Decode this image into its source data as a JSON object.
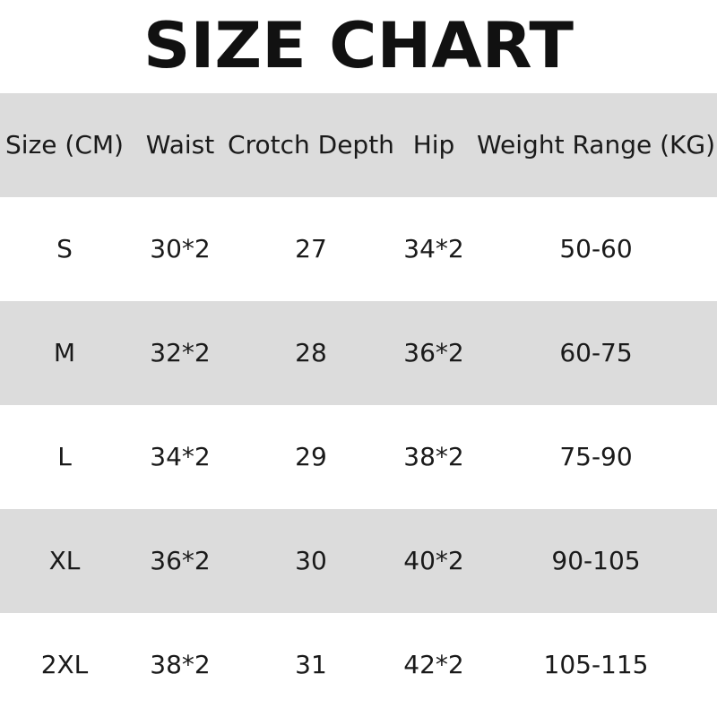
{
  "title": "SIZE CHART",
  "table": {
    "header": [
      "Size (CM)",
      "Waist",
      "Crotch Depth",
      "Hip",
      "Weight Range (KG)"
    ],
    "rows": [
      [
        "S",
        "30*2",
        "27",
        "34*2",
        "50-60"
      ],
      [
        "M",
        "32*2",
        "28",
        "36*2",
        "60-75"
      ],
      [
        "L",
        "34*2",
        "29",
        "38*2",
        "75-90"
      ],
      [
        "XL",
        "36*2",
        "30",
        "40*2",
        "90-105"
      ],
      [
        "2XL",
        "38*2",
        "31",
        "42*2",
        "105-115"
      ]
    ]
  }
}
